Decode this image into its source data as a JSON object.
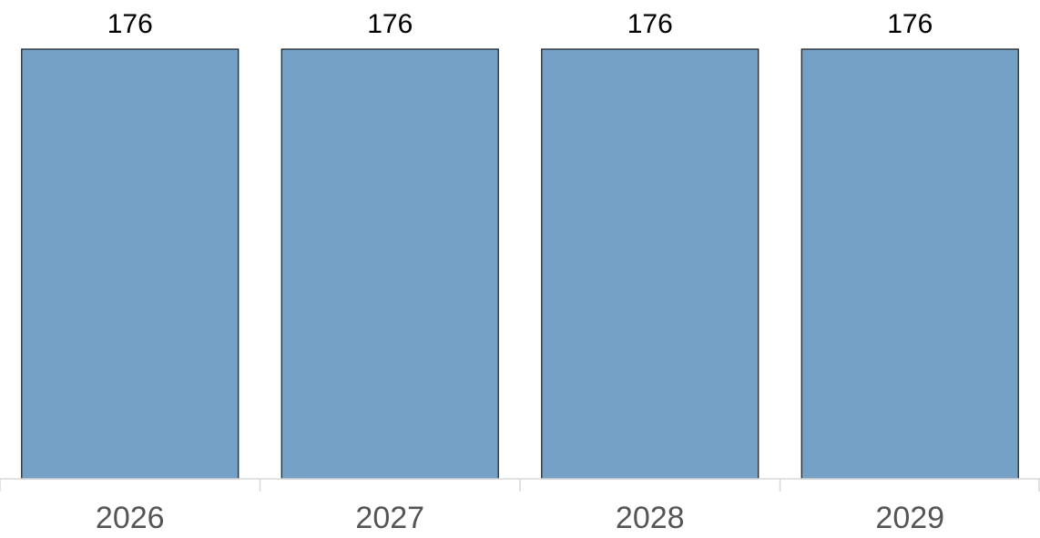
{
  "chart_data": {
    "type": "bar",
    "categories": [
      "2026",
      "2027",
      "2028",
      "2029"
    ],
    "values": [
      176,
      176,
      176,
      176
    ],
    "data_labels": [
      "176",
      "176",
      "176",
      "176"
    ],
    "title": "",
    "xlabel": "",
    "ylabel": "",
    "ylim": [
      0,
      176
    ],
    "grid": false,
    "legend": "none",
    "colors": {
      "bar_fill": "#76a1c6",
      "bar_stroke": "#1a1a1a",
      "axis": "#d9d9d9",
      "tick_label": "#555555",
      "data_label": "#000000"
    }
  }
}
